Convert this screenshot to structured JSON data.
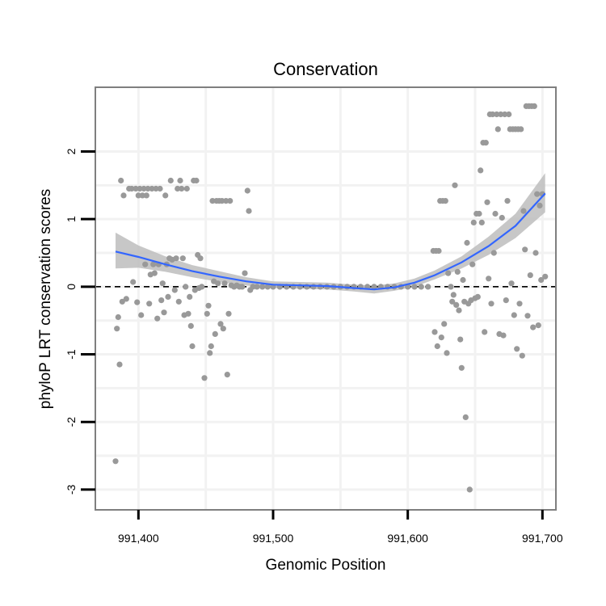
{
  "chart_data": {
    "type": "scatter",
    "title": "Conservation",
    "xlabel": "Genomic Position",
    "ylabel": "phyloP LRT conservation scores",
    "xlim": [
      991368,
      991710
    ],
    "ylim": [
      -3.3,
      2.95
    ],
    "x_ticks": [
      991400,
      991500,
      991600,
      991700
    ],
    "x_tick_labels": [
      "991,400",
      "991,500",
      "991,600",
      "991,700"
    ],
    "y_ticks": [
      -3,
      -2,
      -1,
      0,
      1,
      2
    ],
    "y_tick_labels": [
      "-3",
      "-2",
      "-1",
      "0",
      "1",
      "2"
    ],
    "reference_line": {
      "y": 0,
      "style": "dashed",
      "color": "#000000"
    },
    "colors": {
      "points": "#999999",
      "smooth_line": "#3366ff",
      "confidence_band": "#bdbdbd",
      "grid": "#f2f2f2",
      "panel_border": "#7f7f7f",
      "axis_ticks": "#000000"
    },
    "points": [
      {
        "x": 991383,
        "y": -2.58
      },
      {
        "x": 991384,
        "y": -0.62
      },
      {
        "x": 991385,
        "y": -0.45
      },
      {
        "x": 991386,
        "y": -1.15
      },
      {
        "x": 991387,
        "y": 1.57
      },
      {
        "x": 991388,
        "y": -0.22
      },
      {
        "x": 991389,
        "y": 1.35
      },
      {
        "x": 991391,
        "y": -0.18
      },
      {
        "x": 991393,
        "y": 1.45
      },
      {
        "x": 991395,
        "y": 1.45
      },
      {
        "x": 991396,
        "y": 0.07
      },
      {
        "x": 991398,
        "y": 1.45
      },
      {
        "x": 991399,
        "y": -0.23
      },
      {
        "x": 991400,
        "y": 1.35
      },
      {
        "x": 991401,
        "y": 1.45
      },
      {
        "x": 991402,
        "y": -0.42
      },
      {
        "x": 991403,
        "y": 1.35
      },
      {
        "x": 991404,
        "y": 1.45
      },
      {
        "x": 991405,
        "y": 0.33
      },
      {
        "x": 991406,
        "y": 1.35
      },
      {
        "x": 991407,
        "y": 1.45
      },
      {
        "x": 991408,
        "y": -0.25
      },
      {
        "x": 991409,
        "y": 0.18
      },
      {
        "x": 991410,
        "y": 1.45
      },
      {
        "x": 991411,
        "y": 0.33
      },
      {
        "x": 991412,
        "y": 0.2
      },
      {
        "x": 991413,
        "y": 1.45
      },
      {
        "x": 991414,
        "y": -0.47
      },
      {
        "x": 991415,
        "y": 0.33
      },
      {
        "x": 991416,
        "y": 1.45
      },
      {
        "x": 991417,
        "y": -0.2
      },
      {
        "x": 991418,
        "y": 0.05
      },
      {
        "x": 991419,
        "y": -0.38
      },
      {
        "x": 991420,
        "y": 1.35
      },
      {
        "x": 991421,
        "y": 0.33
      },
      {
        "x": 991422,
        "y": -0.15
      },
      {
        "x": 991423,
        "y": 0.42
      },
      {
        "x": 991424,
        "y": 1.57
      },
      {
        "x": 991425,
        "y": 0.4
      },
      {
        "x": 991427,
        "y": -0.05
      },
      {
        "x": 991428,
        "y": 0.42
      },
      {
        "x": 991429,
        "y": 1.45
      },
      {
        "x": 991430,
        "y": -0.22
      },
      {
        "x": 991431,
        "y": 1.57
      },
      {
        "x": 991432,
        "y": 1.45
      },
      {
        "x": 991433,
        "y": 0.42
      },
      {
        "x": 991434,
        "y": -0.42
      },
      {
        "x": 991435,
        "y": 0.0
      },
      {
        "x": 991436,
        "y": 1.45
      },
      {
        "x": 991437,
        "y": -0.4
      },
      {
        "x": 991438,
        "y": -0.15
      },
      {
        "x": 991439,
        "y": -0.58
      },
      {
        "x": 991440,
        "y": -0.88
      },
      {
        "x": 991441,
        "y": 1.57
      },
      {
        "x": 991442,
        "y": -0.05
      },
      {
        "x": 991443,
        "y": 1.57
      },
      {
        "x": 991444,
        "y": 0.47
      },
      {
        "x": 991445,
        "y": -0.02
      },
      {
        "x": 991446,
        "y": 0.42
      },
      {
        "x": 991447,
        "y": 0.0
      },
      {
        "x": 991449,
        "y": -1.35
      },
      {
        "x": 991451,
        "y": -0.4
      },
      {
        "x": 991452,
        "y": -0.28
      },
      {
        "x": 991453,
        "y": -0.98
      },
      {
        "x": 991454,
        "y": -0.88
      },
      {
        "x": 991455,
        "y": 1.27
      },
      {
        "x": 991456,
        "y": 0.08
      },
      {
        "x": 991457,
        "y": -0.7
      },
      {
        "x": 991458,
        "y": 1.27
      },
      {
        "x": 991459,
        "y": 0.05
      },
      {
        "x": 991460,
        "y": 1.27
      },
      {
        "x": 991461,
        "y": -0.55
      },
      {
        "x": 991462,
        "y": 1.27
      },
      {
        "x": 991463,
        "y": -0.62
      },
      {
        "x": 991464,
        "y": 0.05
      },
      {
        "x": 991465,
        "y": 1.27
      },
      {
        "x": 991466,
        "y": -1.3
      },
      {
        "x": 991467,
        "y": -0.4
      },
      {
        "x": 991468,
        "y": 1.27
      },
      {
        "x": 991469,
        "y": 0.02
      },
      {
        "x": 991471,
        "y": 0.0
      },
      {
        "x": 991473,
        "y": 0.02
      },
      {
        "x": 991475,
        "y": 0.0
      },
      {
        "x": 991477,
        "y": 0.0
      },
      {
        "x": 991479,
        "y": 0.2
      },
      {
        "x": 991481,
        "y": 1.42
      },
      {
        "x": 991482,
        "y": 1.12
      },
      {
        "x": 991483,
        "y": -0.05
      },
      {
        "x": 991485,
        "y": 0.0
      },
      {
        "x": 991488,
        "y": 0.0
      },
      {
        "x": 991492,
        "y": 0.0
      },
      {
        "x": 991496,
        "y": 0.0
      },
      {
        "x": 991500,
        "y": 0.0
      },
      {
        "x": 991505,
        "y": 0.0
      },
      {
        "x": 991510,
        "y": 0.0
      },
      {
        "x": 991515,
        "y": 0.0
      },
      {
        "x": 991520,
        "y": 0.0
      },
      {
        "x": 991525,
        "y": 0.0
      },
      {
        "x": 991530,
        "y": 0.0
      },
      {
        "x": 991535,
        "y": 0.0
      },
      {
        "x": 991540,
        "y": 0.0
      },
      {
        "x": 991545,
        "y": 0.0
      },
      {
        "x": 991550,
        "y": 0.0
      },
      {
        "x": 991555,
        "y": 0.0
      },
      {
        "x": 991560,
        "y": 0.0
      },
      {
        "x": 991565,
        "y": 0.0
      },
      {
        "x": 991570,
        "y": 0.0
      },
      {
        "x": 991575,
        "y": 0.0
      },
      {
        "x": 991580,
        "y": 0.0
      },
      {
        "x": 991585,
        "y": 0.0
      },
      {
        "x": 991590,
        "y": 0.0
      },
      {
        "x": 991595,
        "y": 0.0
      },
      {
        "x": 991600,
        "y": 0.0
      },
      {
        "x": 991605,
        "y": 0.0
      },
      {
        "x": 991610,
        "y": 0.0
      },
      {
        "x": 991615,
        "y": 0.0
      },
      {
        "x": 991619,
        "y": 0.53
      },
      {
        "x": 991620,
        "y": -0.67
      },
      {
        "x": 991621,
        "y": 0.53
      },
      {
        "x": 991622,
        "y": -0.88
      },
      {
        "x": 991623,
        "y": 0.53
      },
      {
        "x": 991624,
        "y": 1.27
      },
      {
        "x": 991625,
        "y": -0.75
      },
      {
        "x": 991626,
        "y": 1.27
      },
      {
        "x": 991627,
        "y": -0.55
      },
      {
        "x": 991628,
        "y": 1.27
      },
      {
        "x": 991629,
        "y": -0.98
      },
      {
        "x": 991630,
        "y": 0.2
      },
      {
        "x": 991632,
        "y": 0.0
      },
      {
        "x": 991633,
        "y": -0.22
      },
      {
        "x": 991634,
        "y": -0.12
      },
      {
        "x": 991635,
        "y": 1.5
      },
      {
        "x": 991636,
        "y": -0.27
      },
      {
        "x": 991637,
        "y": 0.22
      },
      {
        "x": 991638,
        "y": -0.35
      },
      {
        "x": 991639,
        "y": -0.78
      },
      {
        "x": 991640,
        "y": -1.2
      },
      {
        "x": 991641,
        "y": 0.1
      },
      {
        "x": 991642,
        "y": -0.22
      },
      {
        "x": 991643,
        "y": -1.93
      },
      {
        "x": 991644,
        "y": 0.65
      },
      {
        "x": 991645,
        "y": -0.25
      },
      {
        "x": 991646,
        "y": -3.0
      },
      {
        "x": 991647,
        "y": -0.2
      },
      {
        "x": 991648,
        "y": 0.33
      },
      {
        "x": 991649,
        "y": 0.95
      },
      {
        "x": 991650,
        "y": -0.17
      },
      {
        "x": 991651,
        "y": 1.08
      },
      {
        "x": 991652,
        "y": -0.15
      },
      {
        "x": 991653,
        "y": 1.08
      },
      {
        "x": 991654,
        "y": 1.72
      },
      {
        "x": 991655,
        "y": 0.95
      },
      {
        "x": 991656,
        "y": 2.13
      },
      {
        "x": 991657,
        "y": -0.67
      },
      {
        "x": 991658,
        "y": 2.13
      },
      {
        "x": 991659,
        "y": 1.25
      },
      {
        "x": 991660,
        "y": 0.12
      },
      {
        "x": 991661,
        "y": 2.55
      },
      {
        "x": 991662,
        "y": -0.25
      },
      {
        "x": 991663,
        "y": 2.55
      },
      {
        "x": 991664,
        "y": 0.5
      },
      {
        "x": 991665,
        "y": 1.08
      },
      {
        "x": 991666,
        "y": 2.55
      },
      {
        "x": 991667,
        "y": 2.33
      },
      {
        "x": 991668,
        "y": -0.7
      },
      {
        "x": 991669,
        "y": 2.55
      },
      {
        "x": 991670,
        "y": 1.02
      },
      {
        "x": 991671,
        "y": -0.72
      },
      {
        "x": 991672,
        "y": 2.55
      },
      {
        "x": 991673,
        "y": -0.2
      },
      {
        "x": 991674,
        "y": 1.27
      },
      {
        "x": 991675,
        "y": 2.55
      },
      {
        "x": 991676,
        "y": 2.33
      },
      {
        "x": 991677,
        "y": 0.05
      },
      {
        "x": 991678,
        "y": 2.33
      },
      {
        "x": 991679,
        "y": -0.42
      },
      {
        "x": 991680,
        "y": 2.33
      },
      {
        "x": 991681,
        "y": -0.92
      },
      {
        "x": 991682,
        "y": 2.33
      },
      {
        "x": 991683,
        "y": -0.25
      },
      {
        "x": 991684,
        "y": 2.33
      },
      {
        "x": 991685,
        "y": -1.02
      },
      {
        "x": 991686,
        "y": 1.12
      },
      {
        "x": 991687,
        "y": 0.55
      },
      {
        "x": 991688,
        "y": 2.67
      },
      {
        "x": 991689,
        "y": -0.43
      },
      {
        "x": 991690,
        "y": 2.67
      },
      {
        "x": 991691,
        "y": 0.17
      },
      {
        "x": 991692,
        "y": 2.67
      },
      {
        "x": 991693,
        "y": -0.6
      },
      {
        "x": 991694,
        "y": 2.67
      },
      {
        "x": 991695,
        "y": 0.5
      },
      {
        "x": 991696,
        "y": 1.37
      },
      {
        "x": 991697,
        "y": -0.57
      },
      {
        "x": 991698,
        "y": 1.2
      },
      {
        "x": 991699,
        "y": 0.1
      },
      {
        "x": 991700,
        "y": 1.37
      },
      {
        "x": 991702,
        "y": 0.15
      }
    ],
    "smooth": {
      "method": "loess",
      "x": [
        991383,
        991400,
        991420,
        991440,
        991460,
        991480,
        991500,
        991520,
        991540,
        991560,
        991575,
        991590,
        991605,
        991620,
        991640,
        991660,
        991680,
        991702
      ],
      "y": [
        0.52,
        0.44,
        0.33,
        0.23,
        0.15,
        0.08,
        0.03,
        0.02,
        0.01,
        -0.02,
        -0.04,
        -0.01,
        0.06,
        0.17,
        0.36,
        0.6,
        0.9,
        1.38
      ],
      "lower": [
        0.27,
        0.28,
        0.22,
        0.14,
        0.07,
        0.02,
        -0.02,
        -0.03,
        -0.04,
        -0.07,
        -0.1,
        -0.06,
        0.0,
        0.11,
        0.27,
        0.47,
        0.72,
        1.1
      ],
      "upper": [
        0.8,
        0.61,
        0.45,
        0.32,
        0.23,
        0.14,
        0.08,
        0.07,
        0.06,
        0.03,
        0.02,
        0.05,
        0.12,
        0.24,
        0.45,
        0.74,
        1.08,
        1.68
      ]
    }
  }
}
